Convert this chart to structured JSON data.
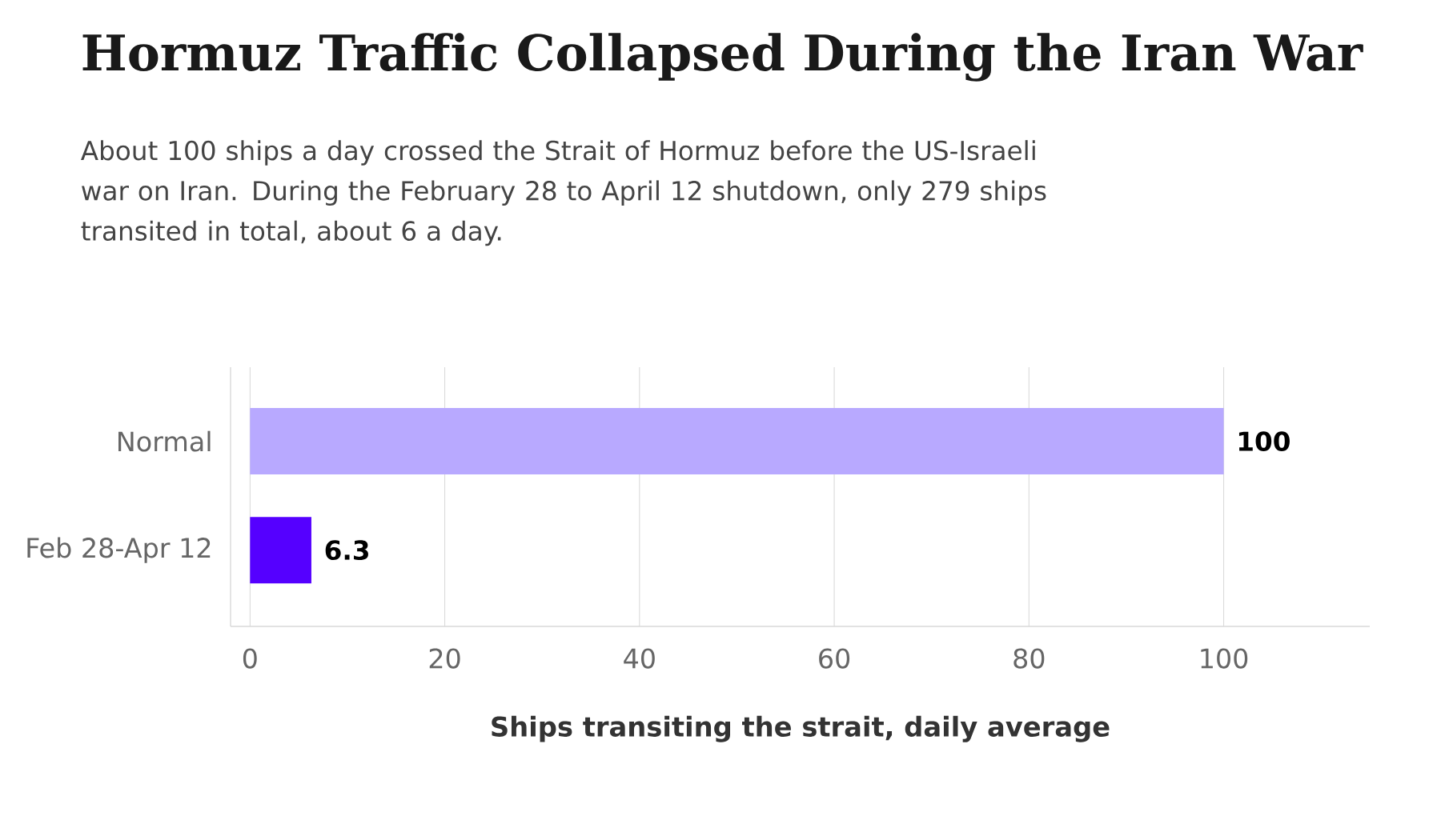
{
  "chart_data": {
    "type": "bar",
    "orientation": "horizontal",
    "title": "Hormuz Traffic Collapsed During the Iran War",
    "subtitle": "About 100 ships a day crossed the Strait of Hormuz before the US-Israeli war on Iran. During the February 28 to April 12 shutdown, only 279 ships transited in total, about 6 a day.",
    "xlabel": "Ships transiting the strait, daily average",
    "categories": [
      "Normal",
      "Feb 28-Apr 12"
    ],
    "values": [
      100,
      6.3
    ],
    "colors": [
      "#b8a9ff",
      "#5500ff"
    ],
    "xlim": [
      -2,
      115
    ],
    "xticks": [
      0,
      20,
      40,
      60,
      80,
      100
    ],
    "grid": "x",
    "data_labels": true
  }
}
